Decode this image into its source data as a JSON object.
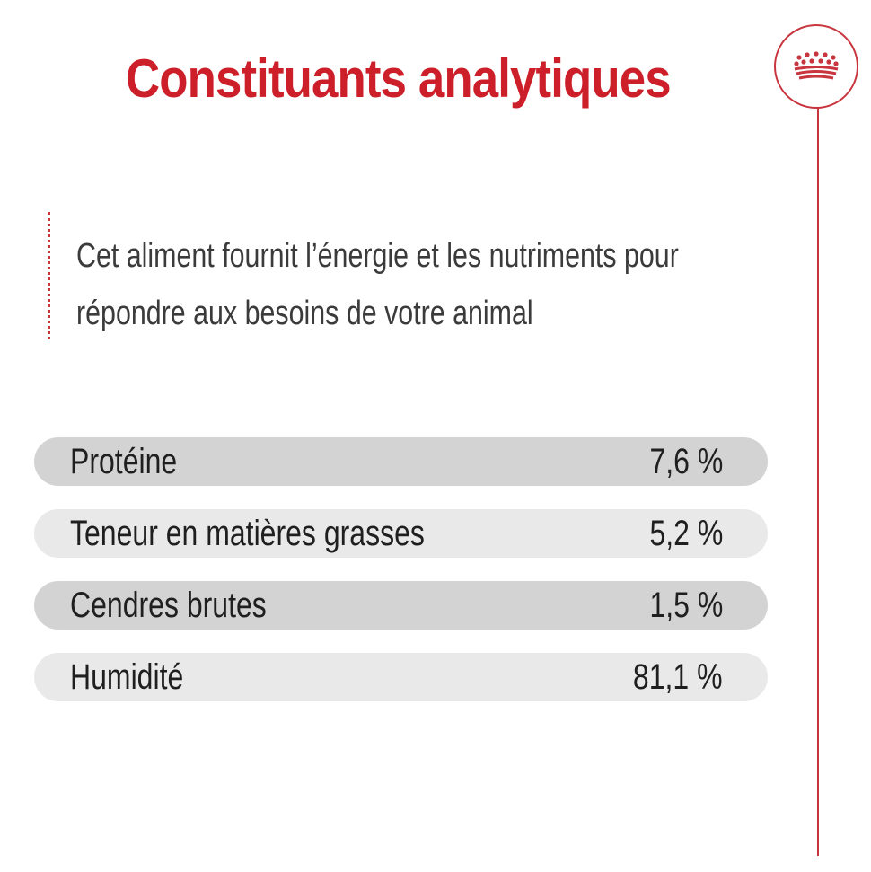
{
  "title": "Constituants analytiques",
  "intro": {
    "line1": "Cet aliment fournit l’énergie et les nutriments pour",
    "line2": "répondre aux besoins de votre animal"
  },
  "logo": {
    "icon": "crown-icon",
    "color": "#c9353e"
  },
  "colors": {
    "accent": "#cc1f2a",
    "row_dark": "#d3d3d3",
    "row_light": "#e9e9e9"
  },
  "constituents": [
    {
      "label": "Protéine",
      "value": "7,6 %"
    },
    {
      "label": "Teneur en matières grasses",
      "value": "5,2 %"
    },
    {
      "label": "Cendres brutes",
      "value": "1,5 %"
    },
    {
      "label": "Humidité",
      "value": "81,1 %"
    }
  ]
}
